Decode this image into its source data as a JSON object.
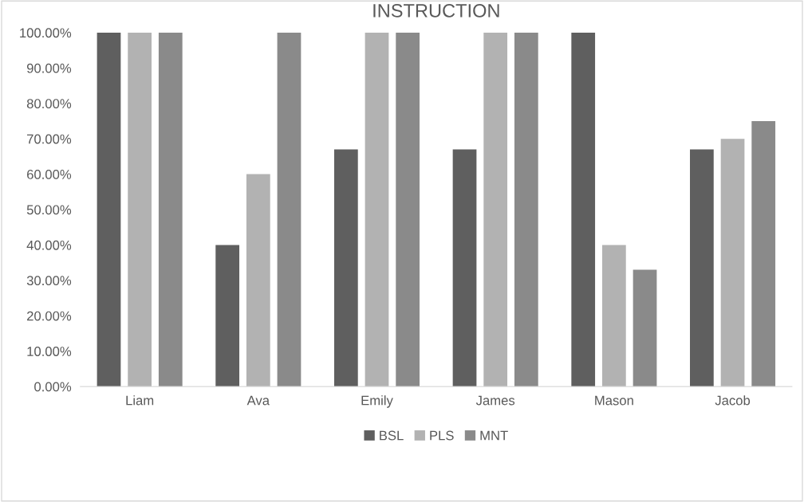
{
  "chart_data": {
    "type": "bar",
    "title": "INSTRUCTION",
    "categories": [
      "Liam",
      "Ava",
      "Emily",
      "James",
      "Mason",
      "Jacob"
    ],
    "series": [
      {
        "name": "BSL",
        "color": "#5f5f5f",
        "values": [
          100,
          40,
          67,
          67,
          100,
          67
        ]
      },
      {
        "name": "PLS",
        "color": "#b2b2b2",
        "values": [
          100,
          60,
          100,
          100,
          40,
          70
        ]
      },
      {
        "name": "MNT",
        "color": "#8a8a8a",
        "values": [
          100,
          100,
          100,
          100,
          33,
          75
        ]
      }
    ],
    "ylim": [
      0,
      100
    ],
    "yticks": [
      {
        "value": 0,
        "label": "0.00%"
      },
      {
        "value": 10,
        "label": "10.00%"
      },
      {
        "value": 20,
        "label": "20.00%"
      },
      {
        "value": 30,
        "label": "30.00%"
      },
      {
        "value": 40,
        "label": "40.00%"
      },
      {
        "value": 50,
        "label": "50.00%"
      },
      {
        "value": 60,
        "label": "60.00%"
      },
      {
        "value": 70,
        "label": "70.00%"
      },
      {
        "value": 80,
        "label": "80.00%"
      },
      {
        "value": 90,
        "label": "90.00%"
      },
      {
        "value": 100,
        "label": "100.00%"
      }
    ],
    "grid": false,
    "legend": "bottom"
  }
}
